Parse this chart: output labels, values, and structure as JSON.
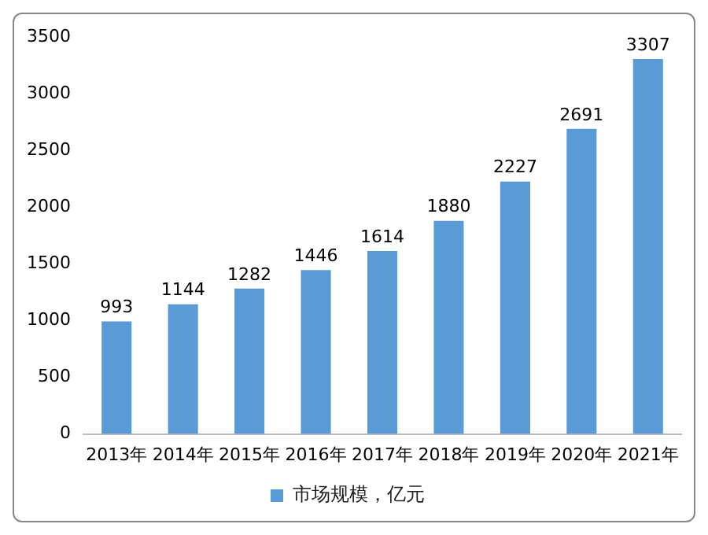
{
  "chart_data": {
    "type": "bar",
    "categories": [
      "2013年",
      "2014年",
      "2015年",
      "2016年",
      "2017年",
      "2018年",
      "2019年",
      "2020年",
      "2021年"
    ],
    "series": [
      {
        "name": "市场规模，亿元",
        "color": "#5b9bd5",
        "values": [
          993,
          1144,
          1282,
          1446,
          1614,
          1880,
          2227,
          2691,
          3307
        ]
      }
    ],
    "ylim": [
      0,
      3500
    ],
    "yticks": [
      0,
      500,
      1000,
      1500,
      2000,
      2500,
      3000,
      3500
    ],
    "data_labels": true,
    "grid": false,
    "legend": "bottom"
  }
}
